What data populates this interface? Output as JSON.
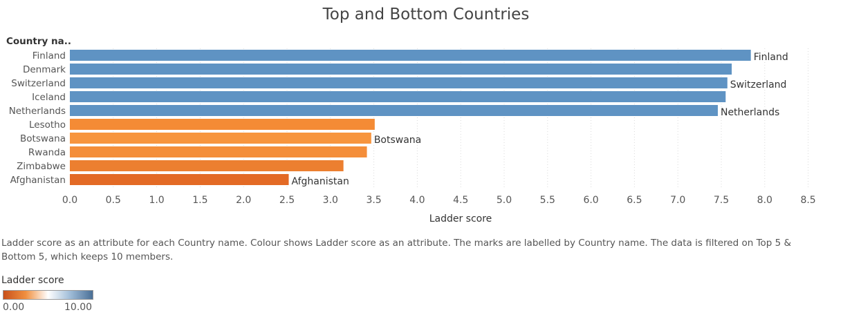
{
  "chart_data": {
    "type": "bar",
    "orientation": "horizontal",
    "title": "Top and Bottom Countries",
    "row_header": "Country na..",
    "xlabel": "Ladder score",
    "xlim": [
      0,
      8.5
    ],
    "xticks": [
      "0.0",
      "0.5",
      "1.0",
      "1.5",
      "2.0",
      "2.5",
      "3.0",
      "3.5",
      "4.0",
      "4.5",
      "5.0",
      "5.5",
      "6.0",
      "6.5",
      "7.0",
      "7.5",
      "8.0",
      "8.5"
    ],
    "grid": "vertical-dotted",
    "categories": [
      "Finland",
      "Denmark",
      "Switzerland",
      "Iceland",
      "Netherlands",
      "Lesotho",
      "Botswana",
      "Rwanda",
      "Zimbabwe",
      "Afghanistan"
    ],
    "values": [
      7.84,
      7.62,
      7.57,
      7.55,
      7.46,
      3.51,
      3.47,
      3.42,
      3.15,
      2.52
    ],
    "bar_labels": [
      "Finland",
      "",
      "Switzerland",
      "",
      "Netherlands",
      "",
      "Botswana",
      "",
      "",
      "Afghanistan"
    ],
    "colors": [
      "#5f93c3",
      "#5f93c3",
      "#5f93c3",
      "#5f93c3",
      "#5f93c3",
      "#f48b35",
      "#f7953e",
      "#f48e3a",
      "#ec7f30",
      "#e36a25"
    ],
    "caption": "Ladder score as an attribute for each Country name.  Colour shows Ladder score as an attribute.  The marks are labelled by Country name. The data is filtered on Top 5 & Bottom 5, which keeps 10 members.",
    "legend": {
      "title": "Ladder score",
      "min_label": "0.00",
      "max_label": "10.00",
      "gradient": [
        "#c8501a",
        "#f09040",
        "#ffffff",
        "#9fbcd8",
        "#4a6f96"
      ]
    }
  }
}
